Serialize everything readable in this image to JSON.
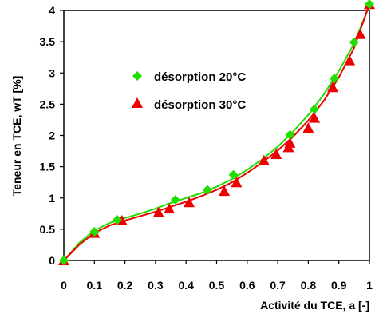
{
  "chart_data": {
    "type": "scatter",
    "title": "",
    "xlabel": "Activité du TCE, a [-]",
    "ylabel": "Teneur en TCE, wT [%]",
    "xlim": [
      0,
      1
    ],
    "ylim": [
      0,
      4
    ],
    "x_ticks": [
      "0",
      "0.1",
      "0.2",
      "0.3",
      "0.4",
      "0.5",
      "0.6",
      "0.7",
      "0.8",
      "0.9",
      "1"
    ],
    "y_ticks": [
      "0",
      "0.5",
      "1",
      "1.5",
      "2",
      "2.5",
      "3",
      "3.5",
      "4"
    ],
    "grid": false,
    "legend_position": "upper-left inside plot",
    "series": [
      {
        "name": "désorption 20°C",
        "marker": "diamond",
        "color": "#22dd00",
        "points": [
          [
            0.0,
            0.0
          ],
          [
            0.1,
            0.46
          ],
          [
            0.175,
            0.65
          ],
          [
            0.365,
            0.97
          ],
          [
            0.47,
            1.13
          ],
          [
            0.555,
            1.37
          ],
          [
            0.74,
            2.01
          ],
          [
            0.82,
            2.42
          ],
          [
            0.885,
            2.91
          ],
          [
            0.95,
            3.49
          ],
          [
            1.0,
            4.1
          ]
        ],
        "fit_curve": [
          [
            0.0,
            0.0
          ],
          [
            0.05,
            0.28
          ],
          [
            0.1,
            0.48
          ],
          [
            0.15,
            0.6
          ],
          [
            0.2,
            0.68
          ],
          [
            0.25,
            0.75
          ],
          [
            0.3,
            0.83
          ],
          [
            0.35,
            0.92
          ],
          [
            0.4,
            1.0
          ],
          [
            0.45,
            1.08
          ],
          [
            0.5,
            1.18
          ],
          [
            0.55,
            1.3
          ],
          [
            0.6,
            1.45
          ],
          [
            0.65,
            1.62
          ],
          [
            0.7,
            1.82
          ],
          [
            0.75,
            2.06
          ],
          [
            0.8,
            2.33
          ],
          [
            0.85,
            2.65
          ],
          [
            0.9,
            3.03
          ],
          [
            0.95,
            3.47
          ],
          [
            1.0,
            4.08
          ]
        ]
      },
      {
        "name": "désorption 30°C",
        "marker": "triangle",
        "color": "#ee0000",
        "points": [
          [
            0.0,
            0.0
          ],
          [
            0.1,
            0.44
          ],
          [
            0.19,
            0.64
          ],
          [
            0.31,
            0.77
          ],
          [
            0.345,
            0.83
          ],
          [
            0.41,
            0.93
          ],
          [
            0.525,
            1.11
          ],
          [
            0.565,
            1.25
          ],
          [
            0.655,
            1.6
          ],
          [
            0.695,
            1.7
          ],
          [
            0.735,
            1.81
          ],
          [
            0.74,
            1.88
          ],
          [
            0.8,
            2.12
          ],
          [
            0.82,
            2.28
          ],
          [
            0.88,
            2.77
          ],
          [
            0.935,
            3.2
          ],
          [
            0.97,
            3.62
          ],
          [
            1.0,
            4.1
          ]
        ],
        "fit_curve": [
          [
            0.0,
            0.0
          ],
          [
            0.05,
            0.25
          ],
          [
            0.1,
            0.44
          ],
          [
            0.15,
            0.56
          ],
          [
            0.2,
            0.64
          ],
          [
            0.25,
            0.71
          ],
          [
            0.3,
            0.78
          ],
          [
            0.35,
            0.86
          ],
          [
            0.4,
            0.94
          ],
          [
            0.45,
            1.03
          ],
          [
            0.5,
            1.13
          ],
          [
            0.55,
            1.25
          ],
          [
            0.6,
            1.4
          ],
          [
            0.65,
            1.57
          ],
          [
            0.7,
            1.76
          ],
          [
            0.75,
            1.98
          ],
          [
            0.8,
            2.24
          ],
          [
            0.85,
            2.55
          ],
          [
            0.9,
            2.93
          ],
          [
            0.95,
            3.4
          ],
          [
            1.0,
            4.1
          ]
        ]
      }
    ]
  }
}
